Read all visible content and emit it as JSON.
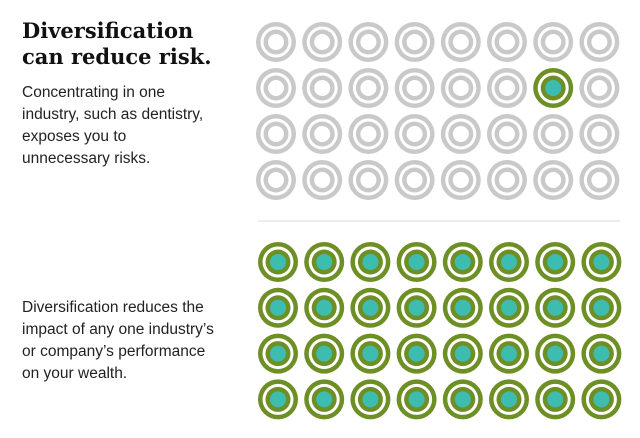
{
  "title": [
    "Diversification",
    "can reduce risk."
  ],
  "concentration_text": [
    "Concentrating in one",
    "industry, such as dentistry,",
    "exposes you to",
    "unnecessary risks."
  ],
  "diversification_text": [
    "Diversification reduces the",
    "impact of any one industry’s",
    "or company’s performance",
    "on your wealth."
  ]
}
